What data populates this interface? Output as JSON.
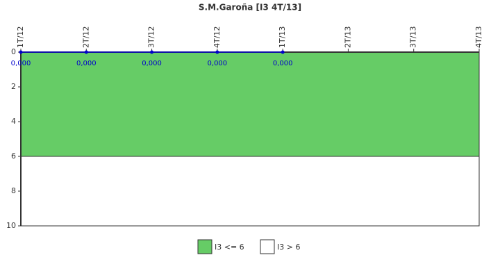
{
  "chart_data": {
    "type": "line",
    "title": "S.M.Garoña [I3 4T/13]",
    "categories": [
      "1T/12",
      "2T/12",
      "3T/12",
      "4T/12",
      "1T/13",
      "2T/13",
      "3T/13",
      "4T/13"
    ],
    "values": [
      0,
      0,
      0,
      0,
      0,
      null,
      null,
      null
    ],
    "value_labels": [
      "0,000",
      "0,000",
      "0,000",
      "0,000",
      "0,000",
      null,
      null,
      null
    ],
    "color": "#0000cc",
    "ylim": [
      0,
      10
    ],
    "yticks": [
      0,
      2,
      4,
      6,
      8,
      10
    ],
    "y_inverted": true,
    "bands": [
      {
        "name": "I3 <= 6",
        "from": 0,
        "to": 6,
        "color": "#66cc66"
      },
      {
        "name": "I3 > 6",
        "from": 6,
        "to": 10,
        "color": "#ffffff"
      }
    ],
    "legend": "bottom"
  }
}
